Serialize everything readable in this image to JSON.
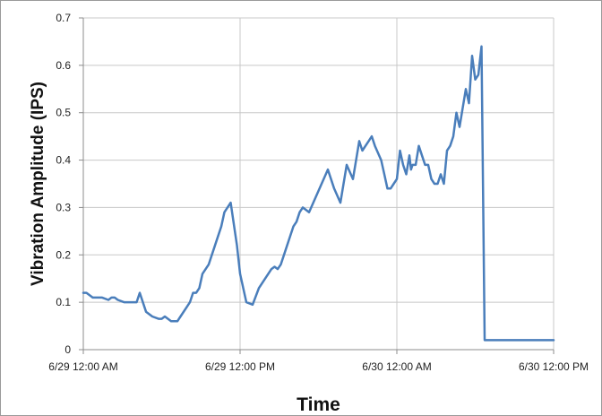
{
  "chart_data": {
    "type": "line",
    "title": "",
    "xlabel": "Time",
    "ylabel": "Vibration Amplitude (IPS)",
    "xlim": [
      0,
      1.5
    ],
    "ylim": [
      0,
      0.7
    ],
    "x_ticks": [
      {
        "value": 0,
        "label": "6/29 12:00 AM"
      },
      {
        "value": 0.5,
        "label": "6/29 12:00 PM"
      },
      {
        "value": 1.0,
        "label": "6/30 12:00 AM"
      },
      {
        "value": 1.5,
        "label": "6/30 12:00 PM"
      }
    ],
    "y_ticks": [
      {
        "value": 0,
        "label": "0"
      },
      {
        "value": 0.1,
        "label": "0.1"
      },
      {
        "value": 0.2,
        "label": "0.2"
      },
      {
        "value": 0.3,
        "label": "0.3"
      },
      {
        "value": 0.4,
        "label": "0.4"
      },
      {
        "value": 0.5,
        "label": "0.5"
      },
      {
        "value": 0.6,
        "label": "0.6"
      },
      {
        "value": 0.7,
        "label": "0.7"
      }
    ],
    "grid": {
      "x": true,
      "y": true
    },
    "legend": "none",
    "series": [
      {
        "color": "#4a7ebb",
        "x": [
          0.0,
          0.01,
          0.02,
          0.03,
          0.04,
          0.06,
          0.08,
          0.09,
          0.1,
          0.11,
          0.13,
          0.15,
          0.16,
          0.17,
          0.18,
          0.2,
          0.22,
          0.24,
          0.25,
          0.26,
          0.28,
          0.3,
          0.31,
          0.33,
          0.34,
          0.35,
          0.36,
          0.37,
          0.38,
          0.4,
          0.42,
          0.44,
          0.45,
          0.47,
          0.49,
          0.5,
          0.52,
          0.54,
          0.56,
          0.58,
          0.6,
          0.61,
          0.62,
          0.63,
          0.64,
          0.66,
          0.67,
          0.68,
          0.69,
          0.7,
          0.72,
          0.74,
          0.76,
          0.78,
          0.8,
          0.82,
          0.84,
          0.86,
          0.88,
          0.89,
          0.9,
          0.91,
          0.92,
          0.93,
          0.95,
          0.96,
          0.97,
          0.98,
          0.99,
          1.0,
          1.01,
          1.02,
          1.03,
          1.04,
          1.045,
          1.05,
          1.06,
          1.07,
          1.08,
          1.09,
          1.1,
          1.11,
          1.12,
          1.13,
          1.14,
          1.15,
          1.16,
          1.17,
          1.18,
          1.19,
          1.2,
          1.21,
          1.22,
          1.23,
          1.24,
          1.25,
          1.26,
          1.27,
          1.28,
          1.29,
          1.3,
          1.31,
          1.32,
          1.33,
          1.34,
          1.35,
          1.36,
          1.37,
          1.38,
          1.39,
          1.4,
          1.41,
          1.42,
          1.43,
          1.44,
          1.45,
          1.46,
          1.465,
          1.47,
          1.475,
          1.48,
          1.485,
          1.49,
          1.5
        ],
        "y": [
          0.12,
          0.12,
          0.115,
          0.11,
          0.11,
          0.11,
          0.105,
          0.11,
          0.11,
          0.105,
          0.1,
          0.1,
          0.1,
          0.1,
          0.12,
          0.08,
          0.07,
          0.065,
          0.065,
          0.07,
          0.06,
          0.06,
          0.07,
          0.09,
          0.1,
          0.12,
          0.12,
          0.13,
          0.16,
          0.18,
          0.22,
          0.26,
          0.29,
          0.31,
          0.22,
          0.16,
          0.1,
          0.095,
          0.13,
          0.15,
          0.17,
          0.175,
          0.17,
          0.18,
          0.2,
          0.24,
          0.26,
          0.27,
          0.29,
          0.3,
          0.29,
          0.32,
          0.35,
          0.38,
          0.34,
          0.31,
          0.39,
          0.36,
          0.44,
          0.42,
          0.43,
          0.44,
          0.45,
          0.43,
          0.4,
          0.37,
          0.34,
          0.34,
          0.35,
          0.36,
          0.42,
          0.39,
          0.37,
          0.41,
          0.38,
          0.39,
          0.39,
          0.43,
          0.41,
          0.39,
          0.39,
          0.36,
          0.35,
          0.35,
          0.37,
          0.35,
          0.42,
          0.43,
          0.45,
          0.5,
          0.47,
          0.51,
          0.55,
          0.52,
          0.62,
          0.57,
          0.58,
          0.64,
          0.02,
          0.02,
          0.02,
          0.02,
          0.02,
          0.02,
          0.02,
          0.02,
          0.02,
          0.02,
          0.02,
          0.02,
          0.02,
          0.02,
          0.02,
          0.02,
          0.02,
          0.02,
          0.02,
          0.02,
          0.02,
          0.02,
          0.02,
          0.02,
          0.02,
          0.02
        ]
      }
    ]
  }
}
